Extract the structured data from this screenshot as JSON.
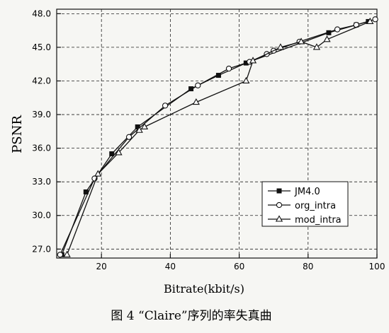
{
  "chart_data": {
    "type": "line",
    "title": "",
    "caption": "图 4 “Claire”序列的率失真曲",
    "xlabel": "Bitrate(kbit/s)",
    "ylabel": "PSNR",
    "xlim": [
      7,
      100
    ],
    "ylim": [
      26.2,
      48.4
    ],
    "xticks": [
      20,
      40,
      60,
      80,
      100
    ],
    "yticks": [
      27.0,
      30.0,
      33.0,
      36.0,
      39.0,
      42.0,
      45.0,
      48.0
    ],
    "xtick_labels": [
      "20",
      "40",
      "60",
      "80",
      "100"
    ],
    "ytick_labels": [
      "27.0",
      "30.0",
      "33.0",
      "36.0",
      "39.0",
      "42.0",
      "45.0",
      "48.0"
    ],
    "grid": "dashed",
    "legend_placement": "center-right",
    "series": [
      {
        "name": "JM4.0",
        "marker": "filled-square",
        "x": [
          8.5,
          15.5,
          23,
          30.5,
          46,
          54,
          62,
          86,
          94,
          97.5
        ],
        "y": [
          26.5,
          32.1,
          35.5,
          37.9,
          41.3,
          42.5,
          43.6,
          46.3,
          47.0,
          47.3
        ]
      },
      {
        "name": "org_intra",
        "marker": "open-circle",
        "x": [
          8,
          18,
          28,
          38.5,
          48,
          57,
          63,
          68,
          70,
          77.5,
          88.5,
          94,
          99.5
        ],
        "y": [
          26.5,
          33.3,
          37.0,
          39.8,
          41.6,
          43.1,
          43.7,
          44.4,
          44.7,
          45.5,
          46.6,
          47.0,
          47.5
        ]
      },
      {
        "name": "mod_intra",
        "marker": "open-triangle",
        "x": [
          10,
          19,
          25,
          31,
          32.5,
          47.5,
          62,
          64,
          72,
          78,
          82.5,
          85.5,
          98
        ],
        "y": [
          26.5,
          33.7,
          35.6,
          37.6,
          37.9,
          40.1,
          42.0,
          43.8,
          45.0,
          45.5,
          45.0,
          45.7,
          47.3
        ]
      }
    ]
  }
}
